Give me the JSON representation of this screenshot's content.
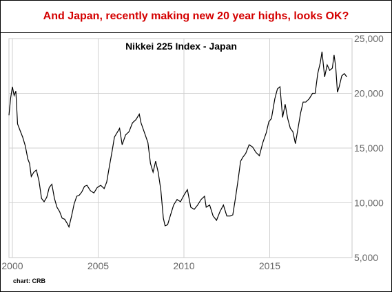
{
  "headline": "And Japan, recently making new 20 year highs, looks OK?",
  "credit": "chart: CRB",
  "chart_data": {
    "type": "line",
    "title": "Nikkei 225 Index - Japan",
    "xlabel": "",
    "ylabel": "",
    "x_ticks": [
      "2000",
      "2005",
      "2010",
      "2015"
    ],
    "y_ticks": [
      "5,000",
      "10,000",
      "15,000",
      "20,000",
      "25,000"
    ],
    "xlim": [
      1999.8,
      2019.8
    ],
    "ylim": [
      5000,
      25000
    ],
    "grid": true,
    "line_color": "#000000",
    "series": [
      {
        "x": [
          1999.8,
          1999.9,
          2000.0,
          2000.1,
          2000.2,
          2000.3,
          2000.45,
          2000.6,
          2000.75,
          2000.9,
          2001.0,
          2001.1,
          2001.25,
          2001.4,
          2001.55,
          2001.7,
          2001.85,
          2002.0,
          2002.15,
          2002.3,
          2002.45,
          2002.6,
          2002.75,
          2002.9,
          2003.05,
          2003.2,
          2003.3,
          2003.45,
          2003.6,
          2003.75,
          2003.9,
          2004.05,
          2004.2,
          2004.35,
          2004.55,
          2004.75,
          2004.95,
          2005.15,
          2005.35,
          2005.5,
          2005.65,
          2005.8,
          2005.95,
          2006.1,
          2006.25,
          2006.4,
          2006.6,
          2006.8,
          2007.0,
          2007.2,
          2007.4,
          2007.5,
          2007.7,
          2007.9,
          2008.05,
          2008.2,
          2008.35,
          2008.5,
          2008.65,
          2008.8,
          2008.9,
          2009.05,
          2009.2,
          2009.4,
          2009.6,
          2009.8,
          2010.0,
          2010.2,
          2010.4,
          2010.6,
          2010.8,
          2011.0,
          2011.2,
          2011.3,
          2011.5,
          2011.7,
          2011.9,
          2012.1,
          2012.3,
          2012.5,
          2012.7,
          2012.85,
          2013.0,
          2013.15,
          2013.3,
          2013.45,
          2013.6,
          2013.8,
          2014.0,
          2014.2,
          2014.4,
          2014.6,
          2014.8,
          2014.95,
          2015.1,
          2015.3,
          2015.45,
          2015.6,
          2015.75,
          2015.9,
          2016.05,
          2016.2,
          2016.35,
          2016.5,
          2016.65,
          2016.8,
          2016.95,
          2017.1,
          2017.3,
          2017.5,
          2017.65,
          2017.8,
          2017.95,
          2018.05,
          2018.2,
          2018.35,
          2018.5,
          2018.65,
          2018.75,
          2018.85,
          2018.95,
          2019.05,
          2019.2,
          2019.35,
          2019.5
        ],
        "y": [
          18000,
          19600,
          20600,
          19800,
          20200,
          17200,
          16600,
          16000,
          15200,
          14000,
          13600,
          12400,
          12800,
          13000,
          12000,
          10400,
          10100,
          10500,
          11400,
          11700,
          10400,
          9600,
          9200,
          8600,
          8500,
          8100,
          7800,
          8800,
          9900,
          10600,
          10700,
          11000,
          11500,
          11600,
          11100,
          10900,
          11400,
          11600,
          11300,
          11900,
          13300,
          14600,
          16000,
          16400,
          16800,
          15300,
          16200,
          16500,
          17300,
          17600,
          18100,
          17300,
          16400,
          15500,
          13600,
          12800,
          13800,
          12800,
          11200,
          8600,
          7900,
          8000,
          8800,
          9800,
          10300,
          10100,
          10700,
          11200,
          9600,
          9400,
          9800,
          10300,
          10600,
          9600,
          9800,
          8800,
          8400,
          9200,
          9800,
          8800,
          8800,
          8900,
          10400,
          12000,
          13800,
          14200,
          14500,
          15300,
          15100,
          14600,
          14300,
          15500,
          16400,
          17400,
          17700,
          19500,
          20400,
          20600,
          17800,
          19000,
          17700,
          16800,
          16500,
          15400,
          16800,
          18200,
          19200,
          19200,
          19500,
          20000,
          20000,
          21800,
          22800,
          23800,
          21500,
          22600,
          22100,
          22300,
          23500,
          22400,
          20100,
          20600,
          21600,
          21800,
          21500
        ]
      }
    ]
  }
}
